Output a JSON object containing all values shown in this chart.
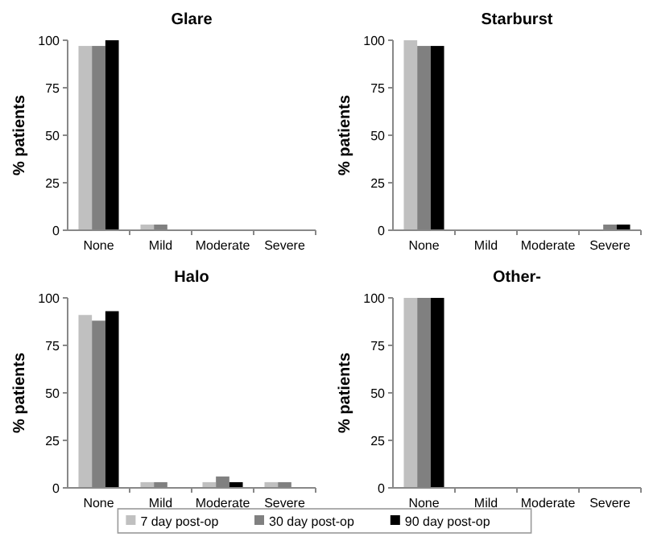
{
  "chart_data": [
    {
      "type": "bar",
      "title": "Glare",
      "ylabel": "% patients",
      "categories": [
        "None",
        "Mild",
        "Moderate",
        "Severe"
      ],
      "ylim": [
        0,
        100
      ],
      "yticks": [
        0,
        25,
        50,
        75,
        100
      ],
      "series": [
        {
          "color": "#c0c0c0",
          "values": [
            97,
            3,
            0,
            0
          ]
        },
        {
          "color": "#808080",
          "values": [
            97,
            3,
            0,
            0
          ]
        },
        {
          "color": "#000000",
          "values": [
            100,
            0,
            0,
            0
          ]
        }
      ]
    },
    {
      "type": "bar",
      "title": "Starburst",
      "ylabel": "% patients",
      "categories": [
        "None",
        "Mild",
        "Moderate",
        "Severe"
      ],
      "ylim": [
        0,
        100
      ],
      "yticks": [
        0,
        25,
        50,
        75,
        100
      ],
      "series": [
        {
          "color": "#c0c0c0",
          "values": [
            100,
            0,
            0,
            0
          ]
        },
        {
          "color": "#808080",
          "values": [
            97,
            0,
            0,
            3
          ]
        },
        {
          "color": "#000000",
          "values": [
            97,
            0,
            0,
            3
          ]
        }
      ]
    },
    {
      "type": "bar",
      "title": "Halo",
      "ylabel": "% patients",
      "categories": [
        "None",
        "Mild",
        "Moderate",
        "Severe"
      ],
      "ylim": [
        0,
        100
      ],
      "yticks": [
        0,
        25,
        50,
        75,
        100
      ],
      "series": [
        {
          "color": "#c0c0c0",
          "values": [
            91,
            3,
            3,
            3
          ]
        },
        {
          "color": "#808080",
          "values": [
            88,
            3,
            6,
            3
          ]
        },
        {
          "color": "#000000",
          "values": [
            93,
            0,
            3,
            0
          ]
        }
      ]
    },
    {
      "type": "bar",
      "title": "Other-",
      "ylabel": "% patients",
      "categories": [
        "None",
        "Mild",
        "Moderate",
        "Severe"
      ],
      "ylim": [
        0,
        100
      ],
      "yticks": [
        0,
        25,
        50,
        75,
        100
      ],
      "legend": "bottom",
      "series": [
        {
          "name": "7 day post-op",
          "color": "#c0c0c0",
          "values": [
            100,
            0,
            0,
            0
          ]
        },
        {
          "name": "30 day post-op",
          "color": "#808080",
          "values": [
            100,
            0,
            0,
            0
          ]
        },
        {
          "name": "90 day post-op",
          "color": "#000000",
          "values": [
            100,
            0,
            0,
            0
          ]
        }
      ]
    }
  ]
}
